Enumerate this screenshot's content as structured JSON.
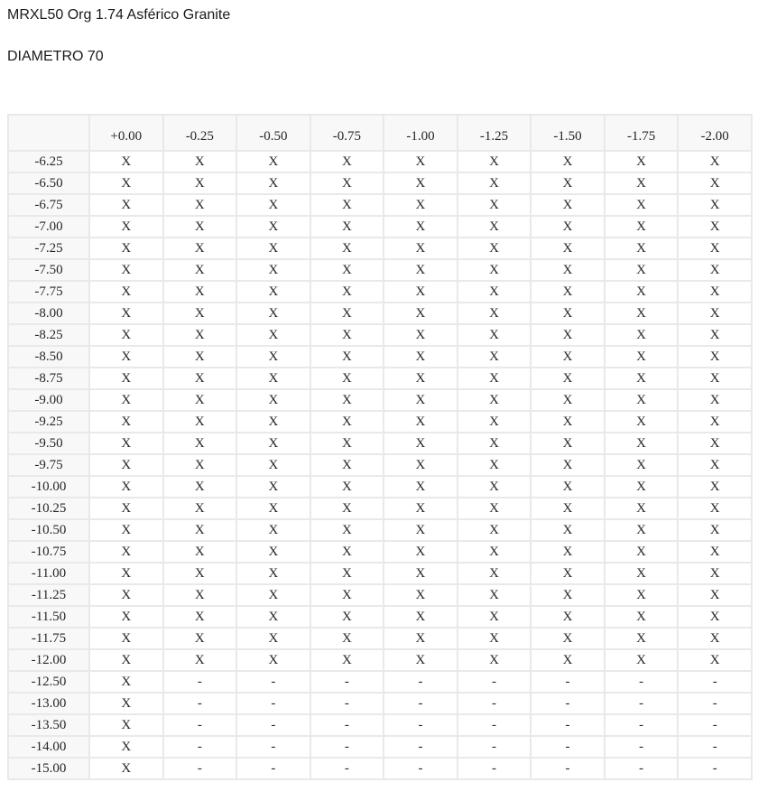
{
  "page": {
    "title": "MRXL50 Org 1.74 Asférico Granite",
    "subtitle": "DIAMETRO 70"
  },
  "table": {
    "corner_label": "",
    "columns": [
      "+0.00",
      "-0.25",
      "-0.50",
      "-0.75",
      "-1.00",
      "-1.25",
      "-1.50",
      "-1.75",
      "-2.00"
    ],
    "available_mark": "X",
    "unavailable_mark": "-",
    "rows": [
      {
        "label": "-6.25",
        "cells": [
          "X",
          "X",
          "X",
          "X",
          "X",
          "X",
          "X",
          "X",
          "X"
        ]
      },
      {
        "label": "-6.50",
        "cells": [
          "X",
          "X",
          "X",
          "X",
          "X",
          "X",
          "X",
          "X",
          "X"
        ]
      },
      {
        "label": "-6.75",
        "cells": [
          "X",
          "X",
          "X",
          "X",
          "X",
          "X",
          "X",
          "X",
          "X"
        ]
      },
      {
        "label": "-7.00",
        "cells": [
          "X",
          "X",
          "X",
          "X",
          "X",
          "X",
          "X",
          "X",
          "X"
        ]
      },
      {
        "label": "-7.25",
        "cells": [
          "X",
          "X",
          "X",
          "X",
          "X",
          "X",
          "X",
          "X",
          "X"
        ]
      },
      {
        "label": "-7.50",
        "cells": [
          "X",
          "X",
          "X",
          "X",
          "X",
          "X",
          "X",
          "X",
          "X"
        ]
      },
      {
        "label": "-7.75",
        "cells": [
          "X",
          "X",
          "X",
          "X",
          "X",
          "X",
          "X",
          "X",
          "X"
        ]
      },
      {
        "label": "-8.00",
        "cells": [
          "X",
          "X",
          "X",
          "X",
          "X",
          "X",
          "X",
          "X",
          "X"
        ]
      },
      {
        "label": "-8.25",
        "cells": [
          "X",
          "X",
          "X",
          "X",
          "X",
          "X",
          "X",
          "X",
          "X"
        ]
      },
      {
        "label": "-8.50",
        "cells": [
          "X",
          "X",
          "X",
          "X",
          "X",
          "X",
          "X",
          "X",
          "X"
        ]
      },
      {
        "label": "-8.75",
        "cells": [
          "X",
          "X",
          "X",
          "X",
          "X",
          "X",
          "X",
          "X",
          "X"
        ]
      },
      {
        "label": "-9.00",
        "cells": [
          "X",
          "X",
          "X",
          "X",
          "X",
          "X",
          "X",
          "X",
          "X"
        ]
      },
      {
        "label": "-9.25",
        "cells": [
          "X",
          "X",
          "X",
          "X",
          "X",
          "X",
          "X",
          "X",
          "X"
        ]
      },
      {
        "label": "-9.50",
        "cells": [
          "X",
          "X",
          "X",
          "X",
          "X",
          "X",
          "X",
          "X",
          "X"
        ]
      },
      {
        "label": "-9.75",
        "cells": [
          "X",
          "X",
          "X",
          "X",
          "X",
          "X",
          "X",
          "X",
          "X"
        ]
      },
      {
        "label": "-10.00",
        "cells": [
          "X",
          "X",
          "X",
          "X",
          "X",
          "X",
          "X",
          "X",
          "X"
        ]
      },
      {
        "label": "-10.25",
        "cells": [
          "X",
          "X",
          "X",
          "X",
          "X",
          "X",
          "X",
          "X",
          "X"
        ]
      },
      {
        "label": "-10.50",
        "cells": [
          "X",
          "X",
          "X",
          "X",
          "X",
          "X",
          "X",
          "X",
          "X"
        ]
      },
      {
        "label": "-10.75",
        "cells": [
          "X",
          "X",
          "X",
          "X",
          "X",
          "X",
          "X",
          "X",
          "X"
        ]
      },
      {
        "label": "-11.00",
        "cells": [
          "X",
          "X",
          "X",
          "X",
          "X",
          "X",
          "X",
          "X",
          "X"
        ]
      },
      {
        "label": "-11.25",
        "cells": [
          "X",
          "X",
          "X",
          "X",
          "X",
          "X",
          "X",
          "X",
          "X"
        ]
      },
      {
        "label": "-11.50",
        "cells": [
          "X",
          "X",
          "X",
          "X",
          "X",
          "X",
          "X",
          "X",
          "X"
        ]
      },
      {
        "label": "-11.75",
        "cells": [
          "X",
          "X",
          "X",
          "X",
          "X",
          "X",
          "X",
          "X",
          "X"
        ]
      },
      {
        "label": "-12.00",
        "cells": [
          "X",
          "X",
          "X",
          "X",
          "X",
          "X",
          "X",
          "X",
          "X"
        ]
      },
      {
        "label": "-12.50",
        "cells": [
          "X",
          "-",
          "-",
          "-",
          "-",
          "-",
          "-",
          "-",
          "-"
        ]
      },
      {
        "label": "-13.00",
        "cells": [
          "X",
          "-",
          "-",
          "-",
          "-",
          "-",
          "-",
          "-",
          "-"
        ]
      },
      {
        "label": "-13.50",
        "cells": [
          "X",
          "-",
          "-",
          "-",
          "-",
          "-",
          "-",
          "-",
          "-"
        ]
      },
      {
        "label": "-14.00",
        "cells": [
          "X",
          "-",
          "-",
          "-",
          "-",
          "-",
          "-",
          "-",
          "-"
        ]
      },
      {
        "label": "-15.00",
        "cells": [
          "X",
          "-",
          "-",
          "-",
          "-",
          "-",
          "-",
          "-",
          "-"
        ]
      }
    ]
  }
}
